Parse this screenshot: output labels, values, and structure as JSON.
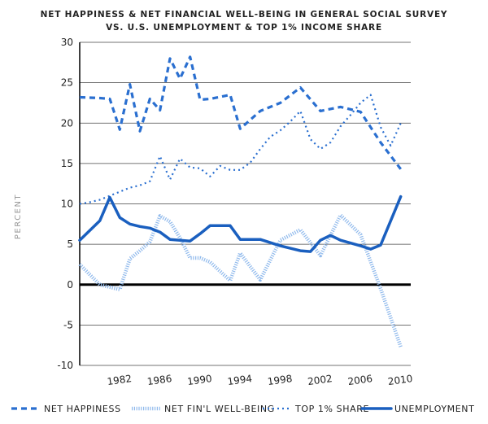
{
  "chart_data": {
    "type": "line",
    "title_line1": "NET HAPPINESS & NET FINANCIAL WELL-BEING IN GENERAL SOCIAL SURVEY",
    "title_line2": "VS. U.S. UNEMPLOYMENT & TOP 1% INCOME SHARE",
    "ylabel": "PERCENT",
    "xlabel": "",
    "ylim": [
      -10,
      30
    ],
    "xlim": [
      1978,
      2011
    ],
    "yticks": [
      -10,
      -5,
      0,
      5,
      10,
      15,
      20,
      25,
      30
    ],
    "ytick_labels": [
      "-10",
      "-5",
      "0",
      "5",
      "10",
      "15",
      "20",
      "25",
      "30"
    ],
    "xticks": [
      1982,
      1986,
      1990,
      1994,
      1998,
      2002,
      2006,
      2010
    ],
    "xtick_labels": [
      "1982",
      "1986",
      "1990",
      "1994",
      "1998",
      "2002",
      "2006",
      "2010"
    ],
    "grid": true,
    "legend_position": "bottom",
    "series": [
      {
        "name": "NET HAPPINESS",
        "style": "dashed",
        "color": "#2a6fd0",
        "x": [
          1978,
          1980,
          1981,
          1982,
          1983,
          1984,
          1985,
          1986,
          1987,
          1988,
          1989,
          1990,
          1991,
          1993,
          1994,
          1996,
          1998,
          2000,
          2002,
          2004,
          2006,
          2008,
          2010
        ],
        "y": [
          23.2,
          23.1,
          23.0,
          19.2,
          24.8,
          19.0,
          23.0,
          21.6,
          28.0,
          25.5,
          28.2,
          22.9,
          23.0,
          23.5,
          19.3,
          21.5,
          22.5,
          24.4,
          21.5,
          22.0,
          21.4,
          17.6,
          14.3
        ]
      },
      {
        "name": "NET FIN'L WELL-BEING",
        "style": "dotted-thick",
        "color": "#8fb9ec",
        "x": [
          1978,
          1980,
          1982,
          1983,
          1984,
          1985,
          1986,
          1987,
          1988,
          1989,
          1990,
          1991,
          1993,
          1994,
          1996,
          1998,
          2000,
          2002,
          2004,
          2006,
          2008,
          2010
        ],
        "y": [
          2.5,
          0.0,
          -0.6,
          3.2,
          4.2,
          5.3,
          8.5,
          7.8,
          5.8,
          3.3,
          3.3,
          2.8,
          0.5,
          3.9,
          0.6,
          5.5,
          6.8,
          3.6,
          8.6,
          6.2,
          -0.5,
          -7.7
        ]
      },
      {
        "name": "TOP 1% SHARE",
        "style": "dotted",
        "color": "#2a6fd0",
        "x": [
          1978,
          1979,
          1980,
          1981,
          1982,
          1983,
          1984,
          1985,
          1986,
          1987,
          1988,
          1989,
          1990,
          1991,
          1992,
          1993,
          1994,
          1995,
          1996,
          1997,
          1998,
          1999,
          2000,
          2001,
          2002,
          2003,
          2004,
          2005,
          2006,
          2007,
          2008,
          2009,
          2010
        ],
        "y": [
          10.0,
          10.2,
          10.5,
          11.0,
          11.5,
          12.0,
          12.3,
          12.8,
          15.9,
          13.0,
          15.6,
          14.5,
          14.4,
          13.4,
          14.7,
          14.2,
          14.2,
          15.1,
          16.8,
          18.3,
          19.1,
          20.2,
          21.5,
          18.0,
          16.8,
          17.6,
          19.6,
          21.0,
          22.5,
          23.5,
          19.5,
          17.2,
          20.0
        ]
      },
      {
        "name": "UNEMPLOYMENT",
        "style": "solid",
        "color": "#1a5fbf",
        "x": [
          1978,
          1980,
          1981,
          1982,
          1983,
          1984,
          1985,
          1986,
          1987,
          1988,
          1989,
          1990,
          1991,
          1993,
          1994,
          1996,
          1998,
          2000,
          2001,
          2002,
          2003,
          2004,
          2006,
          2007,
          2008,
          2010
        ],
        "y": [
          5.5,
          7.9,
          10.8,
          8.3,
          7.5,
          7.2,
          7.0,
          6.5,
          5.6,
          5.5,
          5.4,
          6.3,
          7.3,
          7.3,
          5.6,
          5.6,
          4.8,
          4.2,
          4.1,
          5.5,
          6.1,
          5.5,
          4.8,
          4.4,
          4.9,
          10.9
        ]
      }
    ]
  }
}
